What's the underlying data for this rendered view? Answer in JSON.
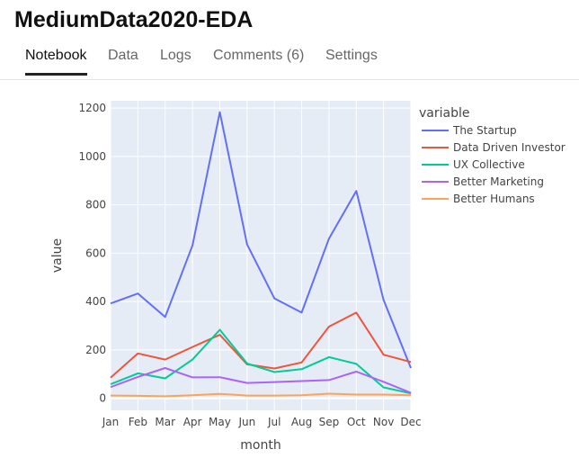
{
  "header": {
    "title": "MediumData2020-EDA"
  },
  "tabs": [
    {
      "label": "Notebook",
      "active": true
    },
    {
      "label": "Data",
      "active": false
    },
    {
      "label": "Logs",
      "active": false
    },
    {
      "label": "Comments (6)",
      "active": false
    },
    {
      "label": "Settings",
      "active": false
    }
  ],
  "chart_data": {
    "type": "line",
    "xlabel": "month",
    "ylabel": "value",
    "categories": [
      "Jan",
      "Feb",
      "Mar",
      "Apr",
      "May",
      "Jun",
      "Jul",
      "Aug",
      "Sep",
      "Oct",
      "Nov",
      "Dec"
    ],
    "yticks": [
      0,
      200,
      400,
      600,
      800,
      1000,
      1200
    ],
    "ylim": [
      -50,
      1230
    ],
    "legend_title": "variable",
    "legend_position": "right",
    "grid": true,
    "plot_background": "#e5ecf6",
    "series": [
      {
        "name": "The Startup",
        "color": "#636efa",
        "values": [
          392,
          433,
          336,
          632,
          1183,
          636,
          413,
          354,
          660,
          857,
          407,
          125
        ]
      },
      {
        "name": "Data Driven Investor",
        "color": "#ef553b",
        "values": [
          85,
          185,
          160,
          212,
          262,
          140,
          123,
          148,
          296,
          354,
          180,
          150
        ]
      },
      {
        "name": "UX Collective",
        "color": "#00cc96",
        "values": [
          58,
          103,
          82,
          160,
          283,
          144,
          108,
          120,
          170,
          142,
          45,
          20
        ]
      },
      {
        "name": "Better Marketing",
        "color": "#ab63fa",
        "values": [
          46,
          88,
          125,
          86,
          87,
          63,
          67,
          71,
          75,
          110,
          68,
          22
        ]
      },
      {
        "name": "Better Humans",
        "color": "#ffa15a",
        "values": [
          11,
          10,
          8,
          12,
          18,
          11,
          11,
          12,
          19,
          15,
          15,
          12
        ]
      }
    ]
  }
}
